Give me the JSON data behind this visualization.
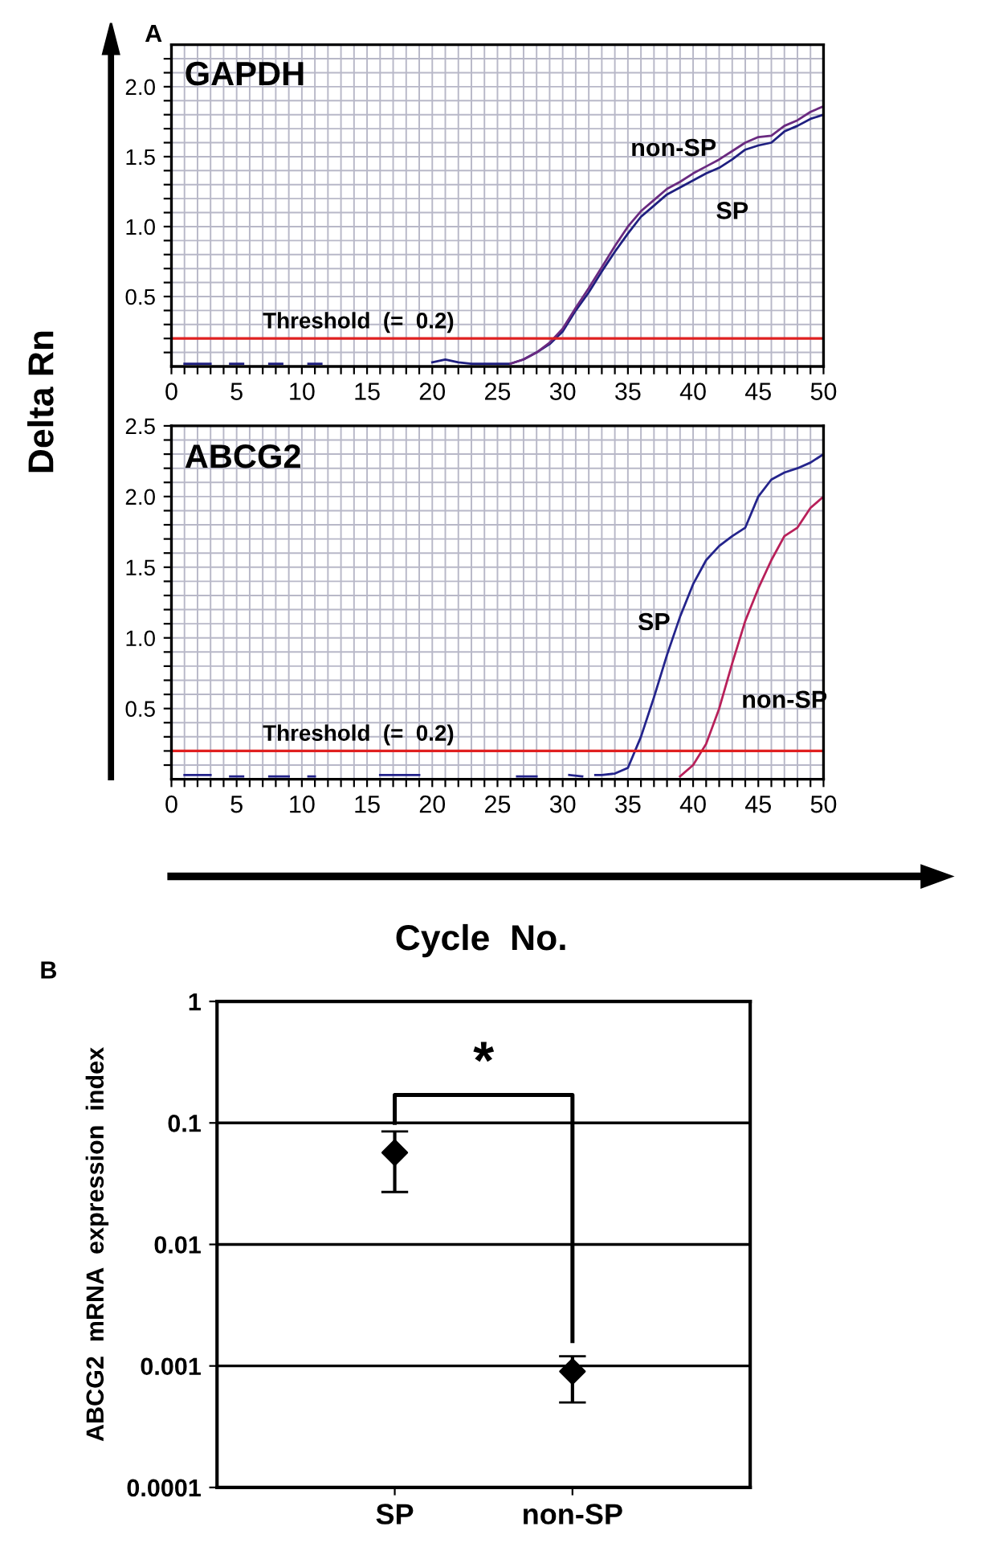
{
  "chart_data": [
    {
      "type": "line",
      "title": "GAPDH",
      "ylabel": "Delta Rn",
      "annotations": [
        "A"
      ],
      "xlim": [
        0,
        50
      ],
      "ylim": [
        0,
        2.3
      ],
      "xticks": [
        0,
        {
          "value": 1,
          "label": null
        },
        {
          "value": 2,
          "label": null
        },
        {
          "value": 3,
          "label": null
        },
        {
          "value": 4,
          "label": null
        },
        5,
        {
          "value": 6,
          "label": null
        },
        {
          "value": 7,
          "label": null
        },
        {
          "value": 8,
          "label": null
        },
        {
          "value": 9,
          "label": null
        },
        10,
        {
          "value": 11,
          "label": null
        },
        {
          "value": 12,
          "label": null
        },
        {
          "value": 13,
          "label": null
        },
        {
          "value": 14,
          "label": null
        },
        15,
        {
          "value": 16,
          "label": null
        },
        {
          "value": 17,
          "label": null
        },
        {
          "value": 18,
          "label": null
        },
        {
          "value": 19,
          "label": null
        },
        20,
        {
          "value": 21,
          "label": null
        },
        {
          "value": 22,
          "label": null
        },
        {
          "value": 23,
          "label": null
        },
        {
          "value": 24,
          "label": null
        },
        25,
        {
          "value": 26,
          "label": null
        },
        {
          "value": 27,
          "label": null
        },
        {
          "value": 28,
          "label": null
        },
        {
          "value": 29,
          "label": null
        },
        30,
        {
          "value": 31,
          "label": null
        },
        {
          "value": 32,
          "label": null
        },
        {
          "value": 33,
          "label": null
        },
        {
          "value": 34,
          "label": null
        },
        35,
        {
          "value": 36,
          "label": null
        },
        {
          "value": 37,
          "label": null
        },
        {
          "value": 38,
          "label": null
        },
        {
          "value": 39,
          "label": null
        },
        40,
        {
          "value": 41,
          "label": null
        },
        {
          "value": 42,
          "label": null
        },
        {
          "value": 43,
          "label": null
        },
        {
          "value": 44,
          "label": null
        },
        45,
        {
          "value": 46,
          "label": null
        },
        {
          "value": 47,
          "label": null
        },
        {
          "value": 48,
          "label": null
        },
        {
          "value": 49,
          "label": null
        },
        50
      ],
      "yticks": [
        {
          "value": 0.1,
          "label": null
        },
        {
          "value": 0.2,
          "label": null
        },
        {
          "value": 0.3,
          "label": null
        },
        {
          "value": 0.4,
          "label": null
        },
        0.5,
        {
          "value": 0.6,
          "label": null
        },
        {
          "value": 0.7,
          "label": null
        },
        {
          "value": 0.8,
          "label": null
        },
        {
          "value": 0.9,
          "label": null
        },
        {
          "value": 1.0,
          "label": "1.0"
        },
        {
          "value": 1.1,
          "label": null
        },
        {
          "value": 1.2,
          "label": null
        },
        {
          "value": 1.3,
          "label": null
        },
        {
          "value": 1.4,
          "label": null
        },
        1.5,
        {
          "value": 1.6,
          "label": null
        },
        {
          "value": 1.7,
          "label": null
        },
        {
          "value": 1.8,
          "label": null
        },
        {
          "value": 1.9,
          "label": null
        },
        {
          "value": 2.0,
          "label": "2.0"
        },
        {
          "value": 2.1,
          "label": null
        },
        {
          "value": 2.2,
          "label": null
        }
      ],
      "grid": true,
      "legend": false,
      "line_style": "solid",
      "ref_lines": [
        {
          "axis": "y",
          "value": 0.2,
          "label": "Threshold  (=  0.2)",
          "color": "#e02020"
        }
      ],
      "series": [
        {
          "name": "SP",
          "color": "#1f1f80",
          "x": [
            1,
            3,
            3.5,
            4.5,
            5.5,
            6,
            7.5,
            8.5,
            9,
            10.5,
            11.5,
            12,
            20,
            21,
            22,
            23,
            24,
            25,
            26,
            27,
            28,
            29,
            30,
            31,
            32,
            33,
            34,
            35,
            36,
            37,
            38,
            39,
            40,
            41,
            42,
            43,
            44,
            45,
            46,
            47,
            48,
            49,
            50
          ],
          "values": [
            0.02,
            0.02,
            null,
            0.02,
            0.02,
            null,
            0.02,
            0.02,
            null,
            0.02,
            0.02,
            null,
            0.03,
            0.05,
            0.03,
            0.02,
            0.02,
            0.02,
            0.02,
            0.05,
            0.1,
            0.16,
            0.25,
            0.4,
            0.53,
            0.68,
            0.82,
            0.95,
            1.07,
            1.15,
            1.23,
            1.28,
            1.33,
            1.38,
            1.42,
            1.48,
            1.55,
            1.58,
            1.6,
            1.68,
            1.72,
            1.77,
            1.8
          ]
        },
        {
          "name": "non-SP",
          "color": "#6a2a80",
          "x": [
            26,
            27,
            28,
            29,
            30,
            31,
            32,
            33,
            34,
            35,
            36,
            37,
            38,
            39,
            40,
            41,
            42,
            43,
            44,
            45,
            46,
            47,
            48,
            49,
            50
          ],
          "values": [
            0.02,
            0.05,
            0.1,
            0.17,
            0.27,
            0.42,
            0.56,
            0.71,
            0.86,
            1.0,
            1.11,
            1.19,
            1.27,
            1.32,
            1.38,
            1.43,
            1.48,
            1.54,
            1.6,
            1.64,
            1.65,
            1.72,
            1.76,
            1.82,
            1.86
          ]
        }
      ]
    },
    {
      "type": "line",
      "title": "ABCG2",
      "xlabel": "Cycle  No.",
      "xlim": [
        0,
        50
      ],
      "ylim": [
        0,
        2.5
      ],
      "xticks": [
        0,
        {
          "value": 1,
          "label": null
        },
        {
          "value": 2,
          "label": null
        },
        {
          "value": 3,
          "label": null
        },
        {
          "value": 4,
          "label": null
        },
        5,
        {
          "value": 6,
          "label": null
        },
        {
          "value": 7,
          "label": null
        },
        {
          "value": 8,
          "label": null
        },
        {
          "value": 9,
          "label": null
        },
        10,
        {
          "value": 11,
          "label": null
        },
        {
          "value": 12,
          "label": null
        },
        {
          "value": 13,
          "label": null
        },
        {
          "value": 14,
          "label": null
        },
        15,
        {
          "value": 16,
          "label": null
        },
        {
          "value": 17,
          "label": null
        },
        {
          "value": 18,
          "label": null
        },
        {
          "value": 19,
          "label": null
        },
        20,
        {
          "value": 21,
          "label": null
        },
        {
          "value": 22,
          "label": null
        },
        {
          "value": 23,
          "label": null
        },
        {
          "value": 24,
          "label": null
        },
        25,
        {
          "value": 26,
          "label": null
        },
        {
          "value": 27,
          "label": null
        },
        {
          "value": 28,
          "label": null
        },
        {
          "value": 29,
          "label": null
        },
        30,
        {
          "value": 31,
          "label": null
        },
        {
          "value": 32,
          "label": null
        },
        {
          "value": 33,
          "label": null
        },
        {
          "value": 34,
          "label": null
        },
        35,
        {
          "value": 36,
          "label": null
        },
        {
          "value": 37,
          "label": null
        },
        {
          "value": 38,
          "label": null
        },
        {
          "value": 39,
          "label": null
        },
        40,
        {
          "value": 41,
          "label": null
        },
        {
          "value": 42,
          "label": null
        },
        {
          "value": 43,
          "label": null
        },
        {
          "value": 44,
          "label": null
        },
        45,
        {
          "value": 46,
          "label": null
        },
        {
          "value": 47,
          "label": null
        },
        {
          "value": 48,
          "label": null
        },
        {
          "value": 49,
          "label": null
        },
        50
      ],
      "yticks": [
        {
          "value": 0.1,
          "label": null
        },
        {
          "value": 0.2,
          "label": null
        },
        {
          "value": 0.3,
          "label": null
        },
        {
          "value": 0.4,
          "label": null
        },
        0.5,
        {
          "value": 0.6,
          "label": null
        },
        {
          "value": 0.7,
          "label": null
        },
        {
          "value": 0.8,
          "label": null
        },
        {
          "value": 0.9,
          "label": null
        },
        {
          "value": 1.0,
          "label": "1.0"
        },
        {
          "value": 1.1,
          "label": null
        },
        {
          "value": 1.2,
          "label": null
        },
        {
          "value": 1.3,
          "label": null
        },
        {
          "value": 1.4,
          "label": null
        },
        1.5,
        {
          "value": 1.6,
          "label": null
        },
        {
          "value": 1.7,
          "label": null
        },
        {
          "value": 1.8,
          "label": null
        },
        {
          "value": 1.9,
          "label": null
        },
        {
          "value": 2.0,
          "label": "2.0"
        },
        {
          "value": 2.1,
          "label": null
        },
        {
          "value": 2.2,
          "label": null
        },
        {
          "value": 2.3,
          "label": null
        },
        {
          "value": 2.4,
          "label": null
        },
        2.5
      ],
      "grid": true,
      "legend": false,
      "line_style": "solid",
      "ref_lines": [
        {
          "axis": "y",
          "value": 0.2,
          "label": "Threshold  (=  0.2)",
          "color": "#e02020"
        }
      ],
      "series": [
        {
          "name": "SP",
          "color": "#24248c",
          "x": [
            1,
            3,
            3.5,
            4.5,
            5.5,
            6,
            7.5,
            9,
            9.5,
            10.5,
            11,
            11.5,
            16,
            17,
            17.5,
            19,
            19.5,
            26.5,
            28,
            28.5,
            30.5,
            31.5,
            32,
            32.5,
            33,
            34,
            35,
            36,
            37,
            38,
            39,
            40,
            41,
            42,
            43,
            44,
            45,
            46,
            47,
            48,
            49,
            50
          ],
          "values": [
            0.03,
            0.03,
            null,
            0.02,
            0.02,
            null,
            0.02,
            0.02,
            null,
            0.02,
            0.02,
            null,
            0.03,
            0.03,
            0.03,
            0.03,
            null,
            0.02,
            0.02,
            null,
            0.03,
            0.02,
            null,
            0.03,
            0.03,
            0.04,
            0.08,
            0.3,
            0.58,
            0.88,
            1.15,
            1.38,
            1.55,
            1.65,
            1.72,
            1.78,
            2.0,
            2.12,
            2.17,
            2.2,
            2.24,
            2.3
          ]
        },
        {
          "name": "non-SP",
          "color": "#b8205a",
          "x": [
            39,
            40,
            41,
            42,
            43,
            44,
            45,
            46,
            47,
            48,
            49,
            50
          ],
          "values": [
            0.02,
            0.1,
            0.25,
            0.5,
            0.82,
            1.12,
            1.35,
            1.55,
            1.72,
            1.78,
            1.92,
            2.0
          ]
        }
      ]
    },
    {
      "type": "scatter",
      "ylabel": "ABCG2  mRNA  expression  index",
      "annotations": [
        "B",
        "*"
      ],
      "categories": [
        "SP",
        "non-SP"
      ],
      "log": "y",
      "ylim": [
        0.0001,
        1
      ],
      "yticks": [
        {
          "value": 0.0001,
          "label": "0.0001"
        },
        {
          "value": 0.001,
          "label": "0.001"
        },
        {
          "value": 0.01,
          "label": "0.01"
        },
        {
          "value": 0.1,
          "label": "0.1"
        },
        1
      ],
      "grid": "y",
      "legend": false,
      "marker": "diamond",
      "series": [
        {
          "color": "#000000",
          "values": [
            0.057,
            0.0009
          ],
          "errors": [
            [
              0.027,
              0.085
            ],
            [
              0.0005,
              0.0012
            ]
          ]
        }
      ]
    }
  ]
}
